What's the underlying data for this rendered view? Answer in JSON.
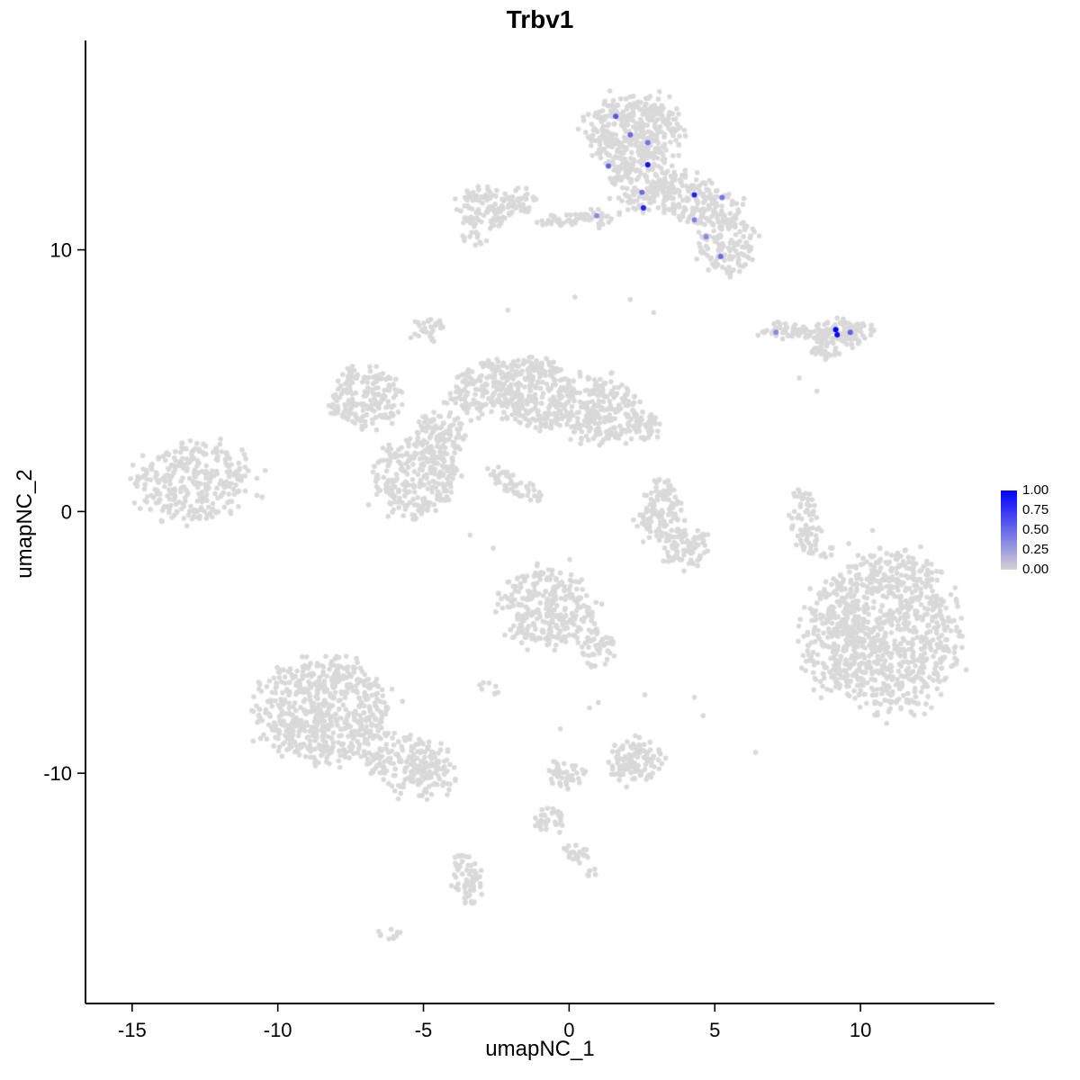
{
  "chart_data": {
    "type": "scatter",
    "title": "Trbv1",
    "xlabel": "umapNC_1",
    "ylabel": "umapNC_2",
    "xlim": [
      -16.6,
      14.6
    ],
    "ylim": [
      -18.8,
      18.0
    ],
    "x_ticks": [
      -15,
      -10,
      -5,
      0,
      5,
      10
    ],
    "y_ticks": [
      -10,
      0,
      10
    ],
    "grid": false,
    "legend": {
      "position": "right",
      "labels": [
        "1.00",
        "0.75",
        "0.50",
        "0.25",
        "0.00"
      ],
      "values": [
        1.0,
        0.75,
        0.5,
        0.25,
        0.0
      ]
    },
    "colors": {
      "zero_expression_point": "#D9D9D9",
      "scale_low": "#D3D3D3",
      "scale_high": "#0000FF"
    },
    "clusters_format": [
      "center_x",
      "center_y",
      "radius_x",
      "radius_y",
      "rotation_deg",
      "n_cells"
    ],
    "zero_expression_clusters": [
      [
        2.2,
        14.5,
        1.6,
        1.4,
        0,
        380
      ],
      [
        2.4,
        12.6,
        1.0,
        1.2,
        0,
        140
      ],
      [
        4.3,
        11.9,
        1.6,
        0.9,
        -20,
        200
      ],
      [
        5.4,
        10.2,
        1.0,
        1.1,
        0,
        130
      ],
      [
        0.8,
        11.25,
        0.9,
        0.3,
        0,
        35
      ],
      [
        -0.5,
        11.1,
        0.7,
        0.2,
        0,
        25
      ],
      [
        -2.9,
        11.6,
        1.0,
        0.75,
        0,
        110
      ],
      [
        -1.6,
        11.9,
        0.5,
        0.45,
        0,
        35
      ],
      [
        -3.3,
        10.4,
        0.4,
        0.3,
        0,
        12
      ],
      [
        9.3,
        6.85,
        1.1,
        0.45,
        0,
        130
      ],
      [
        7.4,
        6.9,
        0.9,
        0.25,
        0,
        45
      ],
      [
        8.8,
        6.1,
        0.6,
        0.25,
        0,
        25
      ],
      [
        -7.0,
        4.3,
        1.2,
        1.2,
        0,
        180
      ],
      [
        -5.3,
        1.3,
        1.4,
        1.5,
        0,
        260
      ],
      [
        -4.4,
        2.9,
        0.9,
        0.9,
        0,
        110
      ],
      [
        -3.0,
        4.7,
        1.3,
        0.9,
        35,
        150
      ],
      [
        -4.9,
        7.0,
        0.55,
        0.5,
        0,
        30
      ],
      [
        -1.2,
        4.5,
        1.3,
        1.3,
        0,
        260
      ],
      [
        1.0,
        3.9,
        1.4,
        1.2,
        0,
        240
      ],
      [
        2.5,
        3.3,
        0.6,
        0.6,
        0,
        50
      ],
      [
        -1.8,
        1.0,
        1.1,
        0.3,
        -35,
        55
      ],
      [
        -12.9,
        1.1,
        2.0,
        1.5,
        0,
        300
      ],
      [
        3.1,
        -0.2,
        0.8,
        0.9,
        0,
        90
      ],
      [
        4.0,
        -1.4,
        0.7,
        0.8,
        0,
        80
      ],
      [
        3.2,
        0.9,
        0.5,
        0.4,
        0,
        25
      ],
      [
        8.1,
        -0.4,
        0.45,
        1.3,
        10,
        70
      ],
      [
        11.0,
        -4.6,
        2.2,
        3.0,
        0,
        850
      ],
      [
        8.9,
        -4.8,
        1.0,
        2.2,
        0,
        160
      ],
      [
        8.7,
        -1.6,
        0.4,
        0.3,
        0,
        8
      ],
      [
        -8.5,
        -7.6,
        2.2,
        1.9,
        0,
        600
      ],
      [
        -5.4,
        -9.7,
        1.6,
        1.0,
        -30,
        200
      ],
      [
        -0.8,
        -3.7,
        1.6,
        1.5,
        0,
        300
      ],
      [
        0.9,
        -5.2,
        0.6,
        0.7,
        0,
        50
      ],
      [
        -2.8,
        -6.8,
        0.35,
        0.4,
        0,
        8
      ],
      [
        2.3,
        -9.5,
        0.9,
        0.8,
        0,
        110
      ],
      [
        -0.2,
        -10.1,
        0.7,
        0.5,
        0,
        45
      ],
      [
        -0.7,
        -11.8,
        0.5,
        0.6,
        0,
        35
      ],
      [
        0.3,
        -13.0,
        0.5,
        0.4,
        0,
        22
      ],
      [
        -3.5,
        -14.1,
        0.5,
        1.0,
        0,
        60
      ],
      [
        -6.2,
        -16.1,
        0.4,
        0.25,
        0,
        10
      ],
      [
        0.9,
        -13.9,
        0.3,
        0.2,
        0,
        5
      ]
    ],
    "zero_expression_singles": [
      [
        7.9,
        5.1
      ],
      [
        8.5,
        4.6
      ],
      [
        2.9,
        7.6
      ],
      [
        2.1,
        8.1
      ],
      [
        -2.1,
        7.7
      ],
      [
        0.2,
        8.2
      ],
      [
        4.3,
        -7.1
      ],
      [
        4.6,
        -7.8
      ],
      [
        2.6,
        -7.0
      ],
      [
        6.4,
        -9.2
      ],
      [
        0.7,
        -7.5
      ],
      [
        1.0,
        -7.3
      ],
      [
        -0.3,
        -8.3
      ],
      [
        -3.4,
        -0.9
      ],
      [
        -2.6,
        -1.4
      ]
    ],
    "positive_cells": [
      {
        "x": 1.6,
        "y": 15.1,
        "value": 0.6
      },
      {
        "x": 2.1,
        "y": 14.4,
        "value": 0.5
      },
      {
        "x": 2.7,
        "y": 14.1,
        "value": 0.45
      },
      {
        "x": 1.35,
        "y": 13.2,
        "value": 0.55
      },
      {
        "x": 2.7,
        "y": 13.25,
        "value": 0.95
      },
      {
        "x": 2.5,
        "y": 12.2,
        "value": 0.5
      },
      {
        "x": 2.55,
        "y": 11.6,
        "value": 0.85
      },
      {
        "x": 0.95,
        "y": 11.3,
        "value": 0.35
      },
      {
        "x": 4.3,
        "y": 12.1,
        "value": 0.85
      },
      {
        "x": 5.25,
        "y": 12.0,
        "value": 0.45
      },
      {
        "x": 4.3,
        "y": 11.15,
        "value": 0.4
      },
      {
        "x": 4.7,
        "y": 10.5,
        "value": 0.35
      },
      {
        "x": 5.2,
        "y": 9.75,
        "value": 0.5
      },
      {
        "x": 7.1,
        "y": 6.85,
        "value": 0.35
      },
      {
        "x": 9.15,
        "y": 6.95,
        "value": 1.0
      },
      {
        "x": 9.2,
        "y": 6.75,
        "value": 0.95
      },
      {
        "x": 9.65,
        "y": 6.85,
        "value": 0.55
      }
    ]
  }
}
